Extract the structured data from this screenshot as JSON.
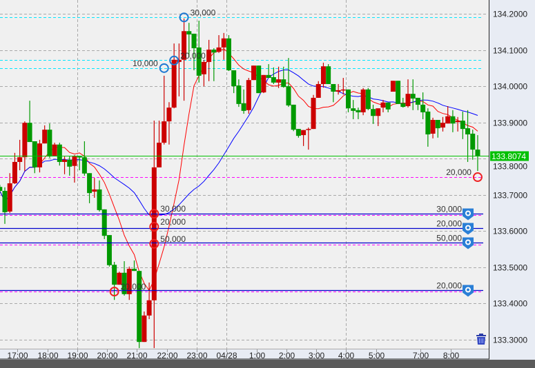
{
  "chart_data": {
    "type": "candlestick",
    "title": "",
    "colors": {
      "up": "#cc0000",
      "down": "#009900",
      "ma_short": "#ff0000",
      "ma_long": "#0000ff",
      "current_price": "#00c000",
      "position_buy": "#00e5ff",
      "position_sell_stop": "#ff00ff",
      "pending_order": "#0000cc",
      "plot_bg": "#f0f0f0",
      "axis_bg": "#e8ecf4"
    },
    "candle_fields": [
      "open",
      "high",
      "low",
      "close"
    ],
    "candles": [
      [
        133.722,
        133.728,
        133.705,
        133.711
      ],
      [
        133.711,
        133.721,
        133.62,
        133.652
      ],
      [
        133.654,
        133.76,
        133.65,
        133.732
      ],
      [
        133.732,
        133.816,
        133.73,
        133.791
      ],
      [
        133.791,
        133.852,
        133.768,
        133.804
      ],
      [
        133.804,
        133.903,
        133.766,
        133.899
      ],
      [
        133.899,
        133.96,
        133.846,
        133.846
      ],
      [
        133.848,
        133.848,
        133.76,
        133.776
      ],
      [
        133.776,
        133.852,
        133.762,
        133.842
      ],
      [
        133.842,
        133.892,
        133.842,
        133.88
      ],
      [
        133.88,
        133.897,
        133.802,
        133.806
      ],
      [
        133.808,
        133.844,
        133.808,
        133.839
      ],
      [
        133.839,
        133.844,
        133.781,
        133.791
      ],
      [
        133.791,
        133.806,
        133.757,
        133.797
      ],
      [
        133.797,
        133.806,
        133.753,
        133.778
      ],
      [
        133.78,
        133.81,
        133.734,
        133.806
      ],
      [
        133.806,
        133.808,
        133.768,
        133.804
      ],
      [
        133.804,
        133.848,
        133.753,
        133.759
      ],
      [
        133.76,
        133.76,
        133.677,
        133.705
      ],
      [
        133.709,
        133.747,
        133.692,
        133.715
      ],
      [
        133.715,
        133.74,
        133.654,
        133.658
      ],
      [
        133.66,
        133.66,
        133.578,
        133.587
      ],
      [
        133.589,
        133.589,
        133.502,
        133.506
      ],
      [
        133.507,
        133.515,
        133.41,
        133.452
      ],
      [
        133.452,
        133.488,
        133.452,
        133.485
      ],
      [
        133.485,
        133.517,
        133.422,
        133.426
      ],
      [
        133.426,
        133.502,
        133.41,
        133.496
      ],
      [
        133.496,
        133.519,
        133.49,
        133.49
      ],
      [
        133.49,
        133.49,
        133.277,
        133.294
      ],
      [
        133.294,
        133.378,
        133.294,
        133.367
      ],
      [
        133.367,
        133.458,
        133.357,
        133.409
      ],
      [
        133.409,
        133.905,
        133.277,
        133.776
      ],
      [
        133.776,
        133.905,
        133.776,
        133.844
      ],
      [
        133.844,
        134.029,
        133.839,
        133.903
      ],
      [
        133.903,
        133.956,
        133.839,
        133.941
      ],
      [
        133.941,
        134.118,
        133.939,
        134.073
      ],
      [
        134.067,
        134.118,
        133.972,
        134.073
      ],
      [
        134.073,
        134.187,
        133.96,
        134.152
      ],
      [
        134.152,
        134.175,
        134.08,
        134.143
      ],
      [
        134.145,
        134.145,
        134.044,
        134.105
      ],
      [
        134.107,
        134.181,
        134.01,
        134.029
      ],
      [
        134.033,
        134.073,
        134.0,
        134.067
      ],
      [
        134.067,
        134.128,
        134.014,
        134.101
      ],
      [
        134.101,
        134.105,
        134.014,
        134.093
      ],
      [
        134.095,
        134.141,
        134.092,
        134.107
      ],
      [
        134.107,
        134.147,
        134.073,
        134.132
      ],
      [
        134.132,
        134.141,
        134.042,
        134.044
      ],
      [
        134.044,
        134.044,
        133.981,
        134.0
      ],
      [
        134.002,
        134.019,
        133.943,
        133.951
      ],
      [
        133.953,
        133.991,
        133.924,
        133.932
      ],
      [
        133.934,
        134.023,
        133.924,
        134.017
      ],
      [
        134.017,
        134.057,
        134.017,
        134.057
      ],
      [
        134.057,
        134.057,
        133.981,
        133.981
      ],
      [
        133.983,
        134.031,
        133.981,
        134.031
      ],
      [
        134.031,
        134.061,
        134.023,
        134.023
      ],
      [
        134.025,
        134.052,
        134.006,
        134.01
      ],
      [
        134.01,
        134.054,
        133.995,
        134.019
      ],
      [
        134.019,
        134.054,
        133.996,
        133.998
      ],
      [
        134.0,
        134.078,
        133.943,
        133.947
      ],
      [
        133.949,
        133.949,
        133.876,
        133.88
      ],
      [
        133.882,
        133.882,
        133.858,
        133.863
      ],
      [
        133.865,
        133.879,
        133.835,
        133.879
      ],
      [
        133.88,
        133.886,
        133.825,
        133.882
      ],
      [
        133.882,
        133.976,
        133.882,
        133.968
      ],
      [
        133.968,
        134.014,
        133.968,
        134.006
      ],
      [
        134.006,
        134.065,
        133.996,
        134.055
      ],
      [
        134.055,
        134.061,
        134.006,
        134.006
      ],
      [
        134.006,
        134.006,
        133.956,
        133.985
      ],
      [
        133.985,
        134.006,
        133.977,
        133.989
      ],
      [
        133.989,
        134.023,
        133.977,
        133.991
      ],
      [
        133.991,
        133.991,
        133.928,
        133.939
      ],
      [
        133.939,
        133.962,
        133.909,
        133.932
      ],
      [
        133.934,
        133.941,
        133.909,
        133.928
      ],
      [
        133.928,
        133.995,
        133.92,
        133.991
      ],
      [
        133.991,
        133.995,
        133.934,
        133.937
      ],
      [
        133.937,
        133.949,
        133.896,
        133.918
      ],
      [
        133.918,
        133.939,
        133.89,
        133.939
      ],
      [
        133.941,
        133.962,
        133.928,
        133.955
      ],
      [
        133.955,
        133.955,
        133.928,
        133.936
      ],
      [
        133.985,
        134.015,
        133.985,
        134.015
      ],
      [
        134.015,
        134.015,
        133.951,
        133.951
      ],
      [
        133.953,
        133.968,
        133.941,
        133.943
      ],
      [
        133.945,
        134.019,
        133.941,
        133.979
      ],
      [
        133.979,
        134.019,
        133.934,
        133.966
      ],
      [
        133.968,
        133.968,
        133.934,
        133.949
      ],
      [
        133.949,
        133.983,
        133.909,
        133.928
      ],
      [
        133.93,
        133.939,
        133.833,
        133.867
      ],
      [
        133.869,
        133.913,
        133.856,
        133.907
      ],
      [
        133.907,
        133.907,
        133.858,
        133.884
      ],
      [
        133.886,
        133.915,
        133.875,
        133.899
      ],
      [
        133.897,
        133.945,
        133.897,
        133.917
      ],
      [
        133.917,
        133.934,
        133.873,
        133.897
      ],
      [
        133.901,
        133.915,
        133.875,
        133.905
      ],
      [
        133.905,
        133.93,
        133.854,
        133.882
      ],
      [
        133.884,
        133.934,
        133.791,
        133.867
      ],
      [
        133.869,
        133.88,
        133.797,
        133.825
      ],
      [
        133.825,
        133.865,
        133.766,
        133.807
      ]
    ],
    "y_axis": {
      "range": [
        133.3,
        134.2
      ],
      "ticks": [
        "134.2000",
        "134.1000",
        "134.0000",
        "133.9000",
        "133.8000",
        "133.7000",
        "133.6000",
        "133.5000",
        "133.4000",
        "133.3000"
      ],
      "grid": true
    },
    "x_axis": {
      "ticks": [
        {
          "bar": 3,
          "label": "17:00"
        },
        {
          "bar": 9,
          "label": "18:00"
        },
        {
          "bar": 15,
          "label": "19:00"
        },
        {
          "bar": 21,
          "label": "20:00"
        },
        {
          "bar": 27,
          "label": "21:00"
        },
        {
          "bar": 33,
          "label": "22:00"
        },
        {
          "bar": 39,
          "label": "23:00"
        },
        {
          "bar": 45,
          "label": "04/28"
        },
        {
          "bar": 51,
          "label": "1:00"
        },
        {
          "bar": 57,
          "label": "2:00"
        },
        {
          "bar": 63,
          "label": "3:00"
        },
        {
          "bar": 69,
          "label": "4:00"
        },
        {
          "bar": 75,
          "label": "5:00"
        },
        {
          "bar": 84,
          "label": "7:00"
        },
        {
          "bar": 90,
          "label": "8:00"
        }
      ],
      "grid_at": [
        "19:00",
        "23:00",
        "04/28",
        "4:00"
      ]
    },
    "current_price": {
      "value": 133.8074,
      "label": "133.8074"
    },
    "position_lines": [
      {
        "price": 134.19,
        "kind": "buy"
      },
      {
        "price": 134.073,
        "kind": "buy"
      },
      {
        "price": 134.05,
        "kind": "buy"
      },
      {
        "price": 133.749,
        "kind": "sell"
      },
      {
        "price": 133.644,
        "kind": "sell"
      },
      {
        "price": 133.608,
        "kind": "sell"
      },
      {
        "price": 133.563,
        "kind": "sell"
      },
      {
        "price": 133.433,
        "kind": "sell"
      }
    ],
    "pending_orders": [
      {
        "price": 133.648,
        "quantity": "30,000"
      },
      {
        "price": 133.608,
        "quantity": "20,000"
      },
      {
        "price": 133.568,
        "quantity": "50,000"
      },
      {
        "price": 133.437,
        "quantity": "20,000"
      }
    ],
    "fill_markers": [
      {
        "bar": 37,
        "price": 134.19,
        "quantity": "30,000",
        "side": "buy"
      },
      {
        "bar": 35,
        "price": 134.071,
        "quantity": "20,000",
        "side": "buy"
      },
      {
        "bar": 33,
        "price": 134.05,
        "quantity": "10,000",
        "side": "buy"
      },
      {
        "bar": 31,
        "price": 133.648,
        "quantity": "30,000",
        "side": "sell"
      },
      {
        "bar": 31,
        "price": 133.612,
        "quantity": "20,000",
        "side": "sell"
      },
      {
        "bar": 31,
        "price": 133.565,
        "quantity": "50,000",
        "side": "sell"
      },
      {
        "bar": 23,
        "price": 133.433,
        "quantity": "20,000",
        "side": "sell"
      },
      {
        "bar": 96,
        "price": 133.749,
        "quantity": "20,000",
        "side": "sell",
        "label_side": "left"
      }
    ],
    "icons": {
      "delete": "trash-icon",
      "pending_marker": "order-pin-icon"
    }
  }
}
